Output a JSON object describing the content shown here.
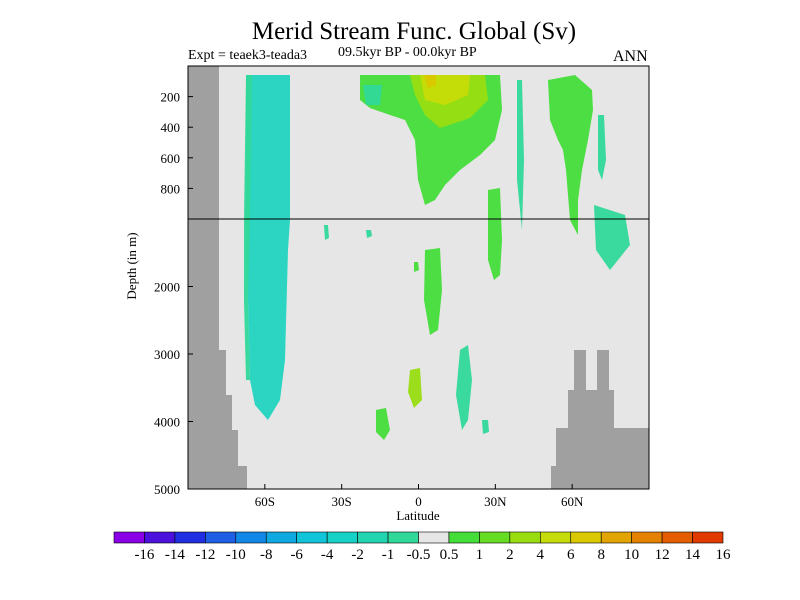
{
  "chart_data": {
    "type": "heatmap",
    "title": "Merid Stream Func. Global (Sv)",
    "subtitle_left": "Expt = teaek3-teada3",
    "subtitle_center": "09.5kyr BP - 00.0kyr BP",
    "subtitle_right": "ANN",
    "xlabel": "Latitude",
    "ylabel": "Depth (in m)",
    "x_ticks": [
      "60S",
      "30S",
      "0",
      "30N",
      "60N"
    ],
    "x_tick_values": [
      -60,
      -30,
      0,
      30,
      60
    ],
    "xlim": [
      -90,
      90
    ],
    "y_ticks_upper": [
      "200",
      "400",
      "600",
      "800"
    ],
    "y_ticks_lower": [
      "2000",
      "3000",
      "4000",
      "5000"
    ],
    "upper_depth_range": [
      0,
      1000
    ],
    "lower_depth_range": [
      1000,
      5000
    ],
    "legend_labels": [
      "-16",
      "-14",
      "-12",
      "-10",
      "-8",
      "-6",
      "-4",
      "-2",
      "-1",
      "-0.5",
      "0.5",
      "1",
      "2",
      "4",
      "6",
      "8",
      "10",
      "12",
      "14",
      "16"
    ],
    "legend_colors": [
      "#8a00e6",
      "#4b10dc",
      "#1f2ee0",
      "#1f5fe6",
      "#1188e8",
      "#10a8e0",
      "#12c4d8",
      "#16d2c6",
      "#22d4b0",
      "#30d89a",
      "#e6e6e6",
      "#44dd3a",
      "#66dd22",
      "#99dd11",
      "#c6dc08",
      "#dac800",
      "#e2a400",
      "#e48200",
      "#e45e00",
      "#e03a00"
    ],
    "colors": {
      "background": "#e6e6e6",
      "land": "#a0a0a0",
      "negative_cell": "#22d4c0",
      "negative_weak": "#30d89a",
      "positive_weak": "#44dd3a",
      "positive_mid": "#99dd11",
      "positive_strong": "#c6dc08",
      "positive_peak": "#dac800"
    }
  }
}
